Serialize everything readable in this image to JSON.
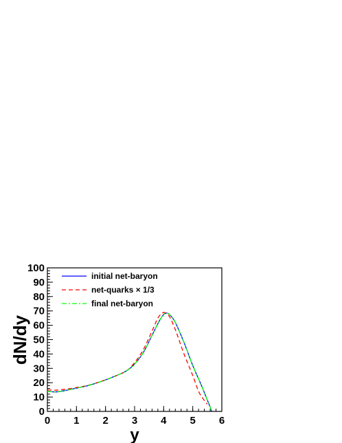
{
  "chart_data": {
    "type": "line",
    "title": "",
    "xlabel": "y",
    "ylabel": "dN/dy",
    "xlim": [
      0,
      6
    ],
    "ylim": [
      0,
      100
    ],
    "x_ticks": [
      "0",
      "1",
      "2",
      "3",
      "4",
      "5",
      "6"
    ],
    "y_ticks": [
      "0",
      "10",
      "20",
      "30",
      "40",
      "50",
      "60",
      "70",
      "80",
      "90",
      "100"
    ],
    "grid": false,
    "legend_position": "top-left",
    "series": [
      {
        "name": "initial net-baryon",
        "color": "#0000ff",
        "style": "solid",
        "x": [
          0,
          0.3,
          0.6,
          1.0,
          1.4,
          1.8,
          2.2,
          2.7,
          3.0,
          3.3,
          3.6,
          3.85,
          4.0,
          4.1,
          4.2,
          4.4,
          4.7,
          5.0,
          5.3,
          5.5,
          5.6,
          5.65
        ],
        "y": [
          14,
          13.6,
          14.5,
          16.2,
          18,
          20.5,
          23.5,
          28,
          33,
          41,
          53,
          63,
          67.5,
          68.5,
          67.5,
          62,
          48,
          32,
          18,
          8,
          3,
          0
        ]
      },
      {
        "name": "net-quarks × 1/3",
        "color": "#ff0000",
        "style": "dashed",
        "x": [
          0,
          0.3,
          0.6,
          1.0,
          1.4,
          1.8,
          2.2,
          2.7,
          3.0,
          3.3,
          3.6,
          3.8,
          3.95,
          4.05,
          4.2,
          4.4,
          4.7,
          5.0,
          5.2,
          5.35,
          5.5
        ],
        "y": [
          15,
          14.8,
          15.4,
          16.6,
          18.2,
          20.6,
          23.5,
          28,
          34,
          43,
          56,
          65,
          68.5,
          68.7,
          66,
          57,
          40,
          25,
          14,
          9,
          5
        ]
      },
      {
        "name": "final net-baryon",
        "color": "#00ff00",
        "style": "dashdot",
        "x": [
          0,
          0.3,
          0.6,
          1.0,
          1.4,
          1.8,
          2.2,
          2.7,
          3.0,
          3.3,
          3.6,
          3.85,
          4.0,
          4.1,
          4.2,
          4.4,
          4.7,
          5.0,
          5.3,
          5.5,
          5.6,
          5.65
        ],
        "y": [
          14,
          13.6,
          14.5,
          16.2,
          18,
          20.5,
          23.5,
          28,
          33,
          41,
          53,
          63,
          67.5,
          68.5,
          67.5,
          62,
          48,
          32,
          18,
          8,
          3,
          0
        ]
      }
    ]
  }
}
